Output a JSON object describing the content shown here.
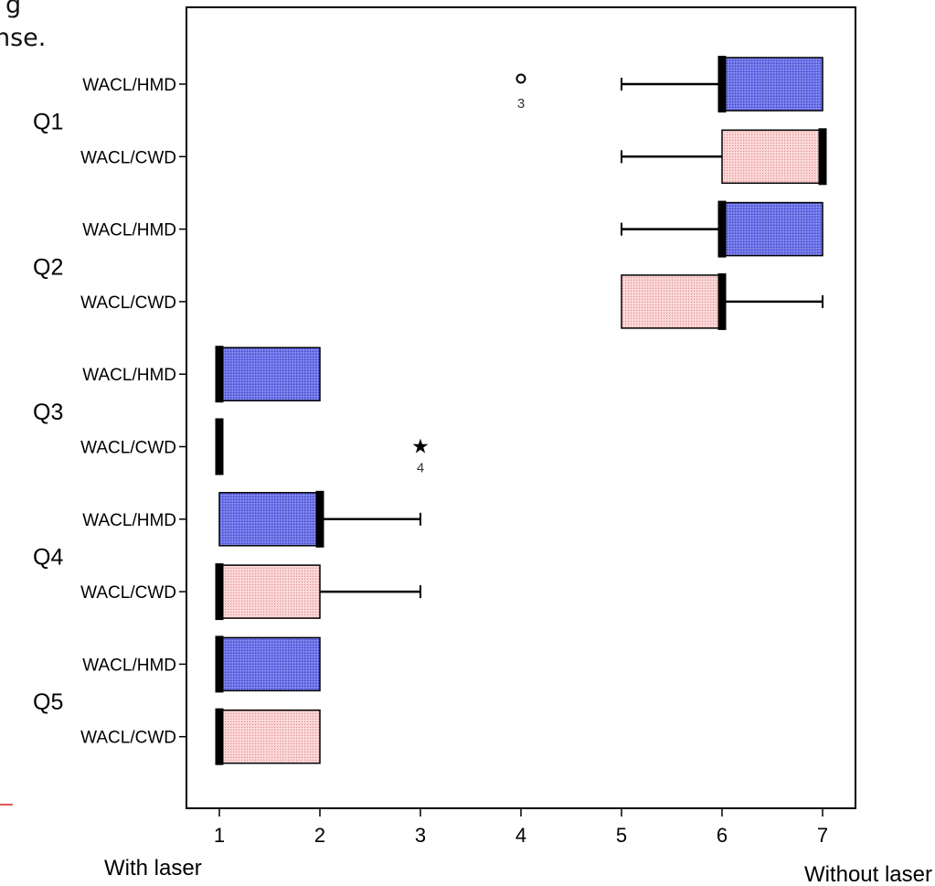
{
  "header_fragment": {
    "line1": "g",
    "line2": "nse."
  },
  "chart_data": {
    "type": "boxplot",
    "orientation": "horizontal",
    "xlim": [
      1,
      7
    ],
    "x_ticks": [
      1,
      2,
      3,
      4,
      5,
      6,
      7
    ],
    "x_tick_labels": [
      "1",
      "2",
      "3",
      "4",
      "5",
      "6",
      "7"
    ],
    "x_end_labels": {
      "left": "With laser",
      "right": "Without laser"
    },
    "colors": {
      "HMD": "#6f74e6",
      "CWD": "#f7c4c4"
    },
    "groups": [
      {
        "label": "Q1",
        "rows": [
          {
            "label": "WACL/HMD",
            "series": "HMD",
            "min": 5,
            "q1": 6,
            "median": 6,
            "q3": 7,
            "max": 7,
            "outliers": [
              {
                "value": 4,
                "marker": "circle",
                "label": "3"
              }
            ]
          },
          {
            "label": "WACL/CWD",
            "series": "CWD",
            "min": 5,
            "q1": 6,
            "median": 7,
            "q3": 7,
            "max": 7,
            "outliers": []
          }
        ]
      },
      {
        "label": "Q2",
        "rows": [
          {
            "label": "WACL/HMD",
            "series": "HMD",
            "min": 5,
            "q1": 6,
            "median": 6,
            "q3": 7,
            "max": 7,
            "outliers": []
          },
          {
            "label": "WACL/CWD",
            "series": "CWD",
            "min": 5,
            "q1": 5,
            "median": 6,
            "q3": 6,
            "max": 7,
            "outliers": []
          }
        ]
      },
      {
        "label": "Q3",
        "rows": [
          {
            "label": "WACL/HMD",
            "series": "HMD",
            "min": 1,
            "q1": 1,
            "median": 1,
            "q3": 2,
            "max": 2,
            "outliers": []
          },
          {
            "label": "WACL/CWD",
            "series": "CWD",
            "min": 1,
            "q1": 1,
            "median": 1,
            "q3": 1,
            "max": 1,
            "outliers": [
              {
                "value": 3,
                "marker": "star",
                "label": "4"
              }
            ]
          }
        ]
      },
      {
        "label": "Q4",
        "rows": [
          {
            "label": "WACL/HMD",
            "series": "HMD",
            "min": 1,
            "q1": 1,
            "median": 2,
            "q3": 2,
            "max": 3,
            "outliers": []
          },
          {
            "label": "WACL/CWD",
            "series": "CWD",
            "min": 1,
            "q1": 1,
            "median": 1,
            "q3": 2,
            "max": 3,
            "outliers": []
          }
        ]
      },
      {
        "label": "Q5",
        "rows": [
          {
            "label": "WACL/HMD",
            "series": "HMD",
            "min": 1,
            "q1": 1,
            "median": 1,
            "q3": 2,
            "max": 2,
            "outliers": []
          },
          {
            "label": "WACL/CWD",
            "series": "CWD",
            "min": 1,
            "q1": 1,
            "median": 1,
            "q3": 2,
            "max": 2,
            "outliers": []
          }
        ]
      }
    ]
  }
}
